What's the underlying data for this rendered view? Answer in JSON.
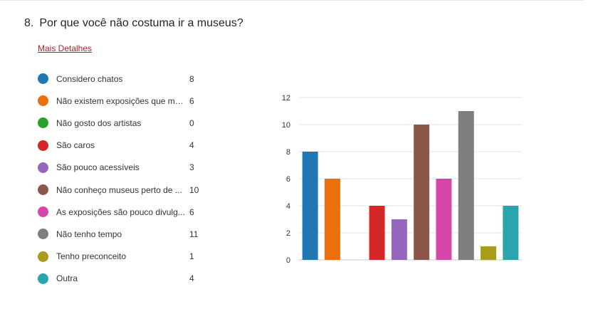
{
  "question": {
    "number": "8.",
    "text": "Por que você não costuma ir a museus?"
  },
  "details_link": "Mais Detalhes",
  "legend": [
    {
      "label": "Considero chatos",
      "count": "8",
      "color": "#1f77b4"
    },
    {
      "label": "Não existem exposições que me...",
      "count": "6",
      "color": "#ec6f0e"
    },
    {
      "label": "Não gosto dos artistas",
      "count": "0",
      "color": "#2ca02c"
    },
    {
      "label": "São caros",
      "count": "4",
      "color": "#d62728"
    },
    {
      "label": "São pouco acessíveis",
      "count": "3",
      "color": "#9467bd"
    },
    {
      "label": "Não conheço museus perto de ...",
      "count": "10",
      "color": "#8c564b"
    },
    {
      "label": "As exposições são pouco divulg...",
      "count": "6",
      "color": "#d546aa"
    },
    {
      "label": "Não tenho tempo",
      "count": "11",
      "color": "#7f7f7f"
    },
    {
      "label": "Tenho preconceito",
      "count": "1",
      "color": "#a89c1a"
    },
    {
      "label": "Outra",
      "count": "4",
      "color": "#2aa5ad"
    }
  ],
  "chart_data": {
    "type": "bar",
    "values": [
      8,
      6,
      0,
      4,
      3,
      10,
      6,
      11,
      1,
      4
    ],
    "colors": [
      "#1f77b4",
      "#ec6f0e",
      "#2ca02c",
      "#d62728",
      "#9467bd",
      "#8c564b",
      "#d546aa",
      "#7f7f7f",
      "#a89c1a",
      "#2aa5ad"
    ],
    "ylim": [
      0,
      12
    ],
    "yticks": [
      0,
      2,
      4,
      6,
      8,
      10,
      12
    ],
    "grid": true,
    "legend_position": "left"
  }
}
